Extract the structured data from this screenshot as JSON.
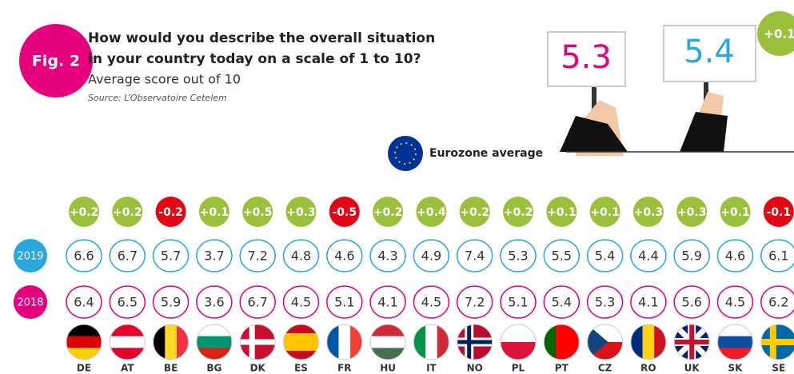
{
  "header": {
    "figure_label": "Fig. 2",
    "title_lines": [
      "How would you describe the overall situation",
      "in your country today on a scale of 1 to 10?"
    ],
    "subtitle": "Average score out of 10",
    "source": "Source: L’Observatoire Cetelem"
  },
  "eurozone": {
    "label": "Eurozone average",
    "score_2018": "5.3",
    "score_2019": "5.4",
    "change": "+0.1"
  },
  "table": {
    "row_labels": [
      "2019",
      "2018"
    ],
    "countries": [
      "DE",
      "AT",
      "BE",
      "BG",
      "DK",
      "ES",
      "FR",
      "HU",
      "IT",
      "NO",
      "PL",
      "PT",
      "CZ",
      "RO",
      "UK",
      "SK",
      "SE"
    ],
    "change": [
      "+0.2",
      "+0.2",
      "-0.2",
      "+0.1",
      "+0.5",
      "+0.3",
      "-0.5",
      "+0.2",
      "+0.4",
      "+0.2",
      "+0.2",
      "+0.1",
      "+0.1",
      "+0.3",
      "+0.3",
      "+0.1",
      "-0.1"
    ],
    "scores_2019": [
      "6.6",
      "6.7",
      "5.7",
      "3.7",
      "7.2",
      "4.8",
      "4.6",
      "4.3",
      "4.9",
      "7.4",
      "5.3",
      "5.5",
      "5.4",
      "4.4",
      "5.9",
      "4.6",
      "6.1"
    ],
    "scores_2018": [
      "6.4",
      "6.5",
      "5.9",
      "3.6",
      "6.7",
      "4.5",
      "5.1",
      "4.1",
      "4.5",
      "7.2",
      "5.1",
      "5.4",
      "5.3",
      "4.1",
      "5.6",
      "4.5",
      "6.2"
    ]
  }
}
